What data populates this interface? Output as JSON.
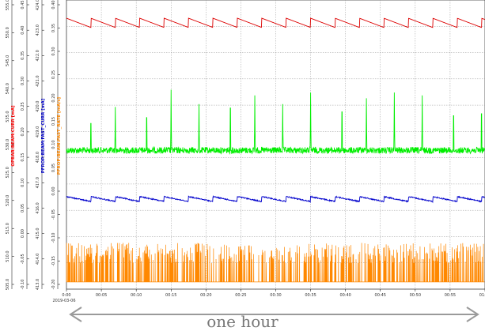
{
  "chart_data": {
    "type": "line",
    "date_label": "2019-03-06",
    "x_tick_labels": [
      "0:00",
      "00:05",
      "00:10",
      "00:15",
      "00:20",
      "00:25",
      "00:30",
      "00:35",
      "00:40",
      "00:45",
      "00:50",
      "00:55",
      "01:00"
    ],
    "x_range_minutes": [
      0,
      60
    ],
    "grid": true,
    "axes": [
      {
        "title": "OPBAR:BEAM:CURR [mA]",
        "color": "#ff0000",
        "ticks": [
          "505.0",
          "510.0",
          "515.0",
          "520.0",
          "525.0",
          "530.0",
          "535.0",
          "540.0",
          "545.0",
          "550.0",
          "555.0"
        ]
      },
      {
        "title": "",
        "color": "#00aa00",
        "ticks": [
          "-0.10",
          "-0.05",
          "0.00",
          "0.05",
          "0.10",
          "0.15",
          "0.20",
          "0.25",
          "0.30",
          "0.35",
          "0.40",
          "0.45"
        ]
      },
      {
        "title": "PFROP:BEAM:FAST_CURR [mA]",
        "color": "#0000cc",
        "ticks": [
          "413.0",
          "414.0",
          "415.0",
          "416.0",
          "417.0",
          "418.0",
          "419.0",
          "420.0",
          "421.0",
          "422.0",
          "423.0",
          "424.0"
        ]
      },
      {
        "title": "PFROP:BEAM:FAST_RATE [mA/s]",
        "color": "#ff8800",
        "ticks": [
          "-0.20",
          "-0.15",
          "-0.10",
          "-0.05",
          "0.00",
          "0.05",
          "0.10",
          "0.15",
          "0.20",
          "0.25",
          "0.30",
          "0.35",
          "0.40"
        ]
      }
    ],
    "series": [
      {
        "color": "#dd0000",
        "pattern": "sawtooth",
        "period_minutes": 3.5,
        "y_fraction_low": 0.063,
        "y_fraction_high": 0.095
      },
      {
        "color": "#00ee00",
        "pattern": "noisy-baseline-with-spikes",
        "baseline_y_fraction": 0.52,
        "spike_minutes": [
          3.5,
          7,
          11.5,
          15,
          19,
          23.5,
          27,
          31,
          35,
          39.5,
          43,
          47,
          51,
          55.5,
          59.5
        ],
        "spike_y_fractions": [
          0.38,
          0.37,
          0.35,
          0.31,
          0.36,
          0.3,
          0.33,
          0.36,
          0.32,
          0.32,
          0.34,
          0.32,
          0.33,
          0.34,
          0.33
        ]
      },
      {
        "color": "#0000cc",
        "pattern": "small-sawtooth",
        "period_minutes": 3.5,
        "y_fraction_low": 0.68,
        "y_fraction_high": 0.697
      },
      {
        "color": "#ff8800",
        "pattern": "dense-spikes",
        "baseline_y_fraction": 0.975,
        "spike_top_y_fraction_range": [
          0.84,
          0.91
        ]
      }
    ]
  },
  "annotation": {
    "caption": "one hour",
    "arrow_color": "#9a9a9a"
  }
}
